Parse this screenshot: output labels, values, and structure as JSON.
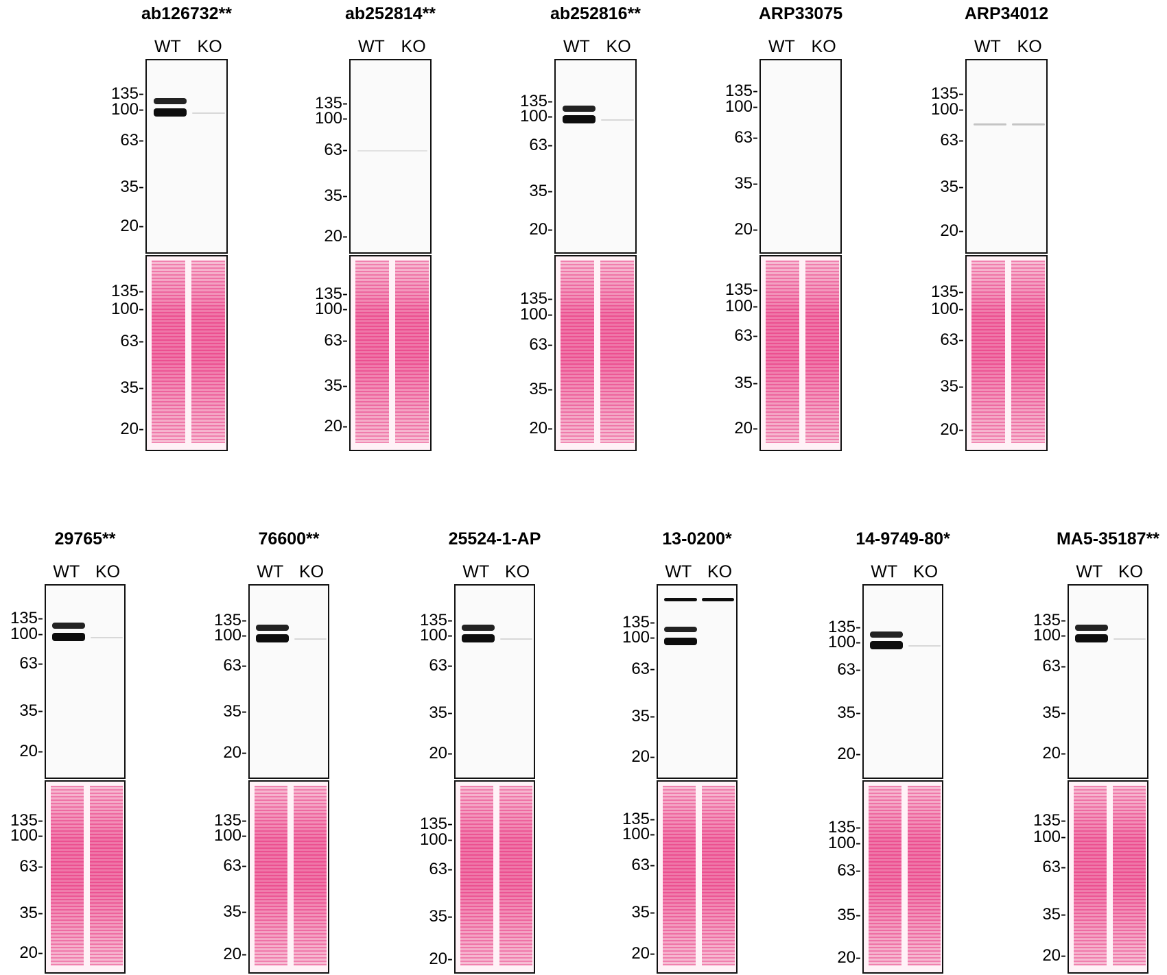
{
  "lanes": {
    "wt": "WT",
    "ko": "KO"
  },
  "colors": {
    "band": "#0d0d0d",
    "stain": "#e8347f",
    "stain_light": "#f6b6cf"
  },
  "panels": [
    {
      "title": "ab126732**",
      "markers_wb": [
        "135-",
        "100-",
        "63-",
        "35-",
        "20-"
      ],
      "markers_stain": [
        "135-",
        "100-",
        "63-",
        "35-",
        "20-"
      ]
    },
    {
      "title": "ab252814**",
      "markers_wb": [
        "135-",
        "100-",
        "63-",
        "35-",
        "20-"
      ],
      "markers_stain": [
        "135-",
        "100-",
        "63-",
        "35-",
        "20-"
      ]
    },
    {
      "title": "ab252816**",
      "markers_wb": [
        "135-",
        "100-",
        "63-",
        "35-",
        "20-"
      ],
      "markers_stain": [
        "135-",
        "100-",
        "63-",
        "35-",
        "20-"
      ]
    },
    {
      "title": "ARP33075",
      "markers_wb": [
        "135-",
        "100-",
        "63-",
        "35-",
        "20-"
      ],
      "markers_stain": [
        "135-",
        "100-",
        "63-",
        "35-",
        "20-"
      ]
    },
    {
      "title": "ARP34012",
      "markers_wb": [
        "135-",
        "100-",
        "63-",
        "35-",
        "20-"
      ],
      "markers_stain": [
        "135-",
        "100-",
        "63-",
        "35-",
        "20-"
      ]
    },
    {
      "title": "29765**",
      "markers_wb": [
        "135-",
        "100-",
        "63-",
        "35-",
        "20-"
      ],
      "markers_stain": [
        "135-",
        "100-",
        "63-",
        "35-",
        "20-"
      ]
    },
    {
      "title": "76600**",
      "markers_wb": [
        "135-",
        "100-",
        "63-",
        "35-",
        "20-"
      ],
      "markers_stain": [
        "135-",
        "100-",
        "63-",
        "35-",
        "20-"
      ]
    },
    {
      "title": "25524-1-AP",
      "markers_wb": [
        "135-",
        "100-",
        "63-",
        "35-",
        "20-"
      ],
      "markers_stain": [
        "135-",
        "100-",
        "63-",
        "35-",
        "20-"
      ]
    },
    {
      "title": "13-0200*",
      "markers_wb": [
        "135-",
        "100-",
        "63-",
        "35-",
        "20-"
      ],
      "markers_stain": [
        "135-",
        "100-",
        "63-",
        "35-",
        "20-"
      ]
    },
    {
      "title": "14-9749-80*",
      "markers_wb": [
        "135-",
        "100-",
        "63-",
        "35-",
        "20-"
      ],
      "markers_stain": [
        "135-",
        "100-",
        "63-",
        "35-",
        "20-"
      ]
    },
    {
      "title": "MA5-35187**",
      "markers_wb": [
        "135-",
        "100-",
        "63-",
        "35-",
        "20-"
      ],
      "markers_stain": [
        "135-",
        "100-",
        "63-",
        "35-",
        "20-"
      ]
    }
  ]
}
